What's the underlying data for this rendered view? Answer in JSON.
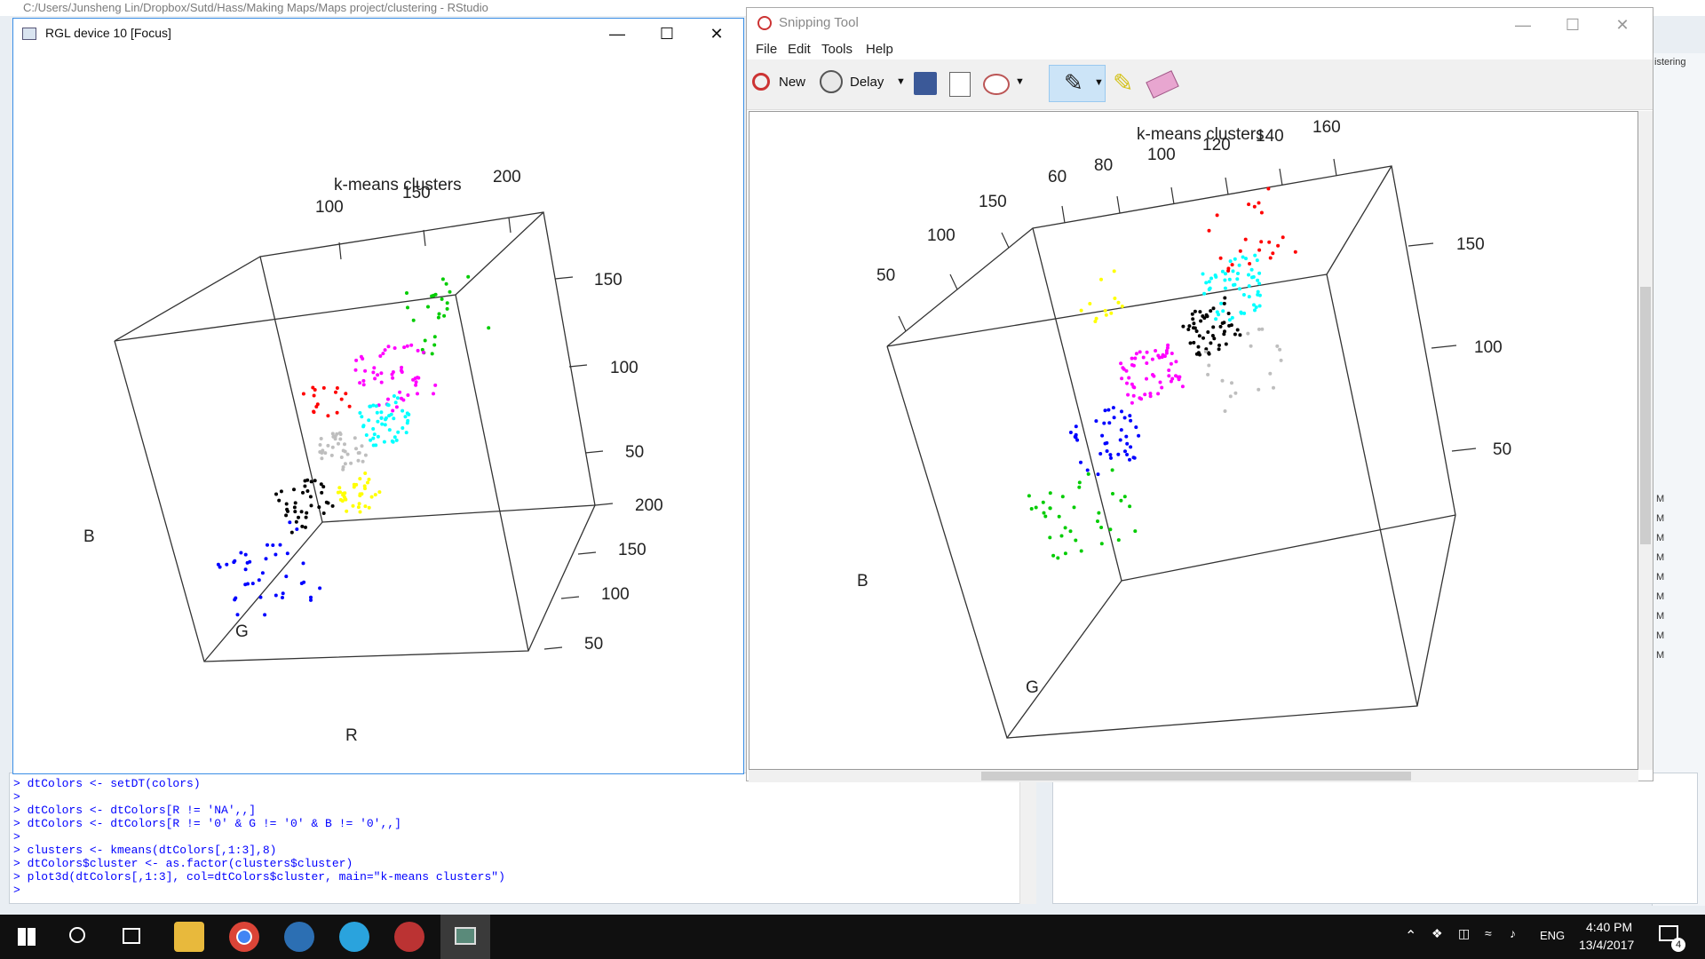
{
  "rstudio": {
    "title": "C:/Users/Junsheng Lin/Dropbox/Sutd/Hass/Making Maps/Maps project/clustering - RStudio",
    "right_tab_fragment": "istering",
    "console_lines": [
      "> dtColors <- setDT(colors)",
      ">",
      "> dtColors <- dtColors[R != 'NA',,]",
      "> dtColors <- dtColors[R != '0' & G != '0' & B != '0',,]",
      ">",
      "> clusters <- kmeans(dtColors[,1:3],8)",
      "> dtColors$cluster <- as.factor(clusters$cluster)",
      "> plot3d(dtColors[,1:3], col=dtColors$cluster, main=\"k-means clusters\")",
      ">"
    ],
    "side_letters": [
      "M",
      "M",
      "M",
      "M",
      "M",
      "M",
      "M",
      "M",
      "M"
    ]
  },
  "rgl": {
    "title": "RGL device 10 [Focus]",
    "plot": {
      "title": "k-means clusters",
      "axis_labels": {
        "b": "B",
        "g": "G",
        "r": "R"
      },
      "top_ticks": [
        "100",
        "150",
        "200"
      ],
      "right_ticks": [
        "150",
        "100",
        "50"
      ],
      "lower_right_ticks": [
        "200",
        "150",
        "100",
        "50"
      ]
    }
  },
  "snip": {
    "title": "Snipping Tool",
    "menu": [
      "File",
      "Edit",
      "Tools",
      "Help"
    ],
    "toolbar": {
      "new_label": "New",
      "delay_label": "Delay"
    },
    "plot": {
      "title": "k-means clusters",
      "axis_labels": {
        "b": "B",
        "g": "G"
      },
      "top_ticks": [
        "60",
        "80",
        "100",
        "120",
        "140",
        "160"
      ],
      "left_ticks": [
        "150",
        "100",
        "50"
      ],
      "right_ticks": [
        "150",
        "100",
        "50"
      ]
    }
  },
  "taskbar": {
    "lang": "ENG",
    "time": "4:40 PM",
    "date": "13/4/2017",
    "notif_count": "4"
  },
  "colors": {
    "green": "#00cc00",
    "magenta": "#ff00ff",
    "cyan": "#00ffff",
    "red": "#ff0000",
    "black": "#000000",
    "blue": "#0000ff",
    "yellow": "#ffff00",
    "gray": "#bebebe"
  }
}
